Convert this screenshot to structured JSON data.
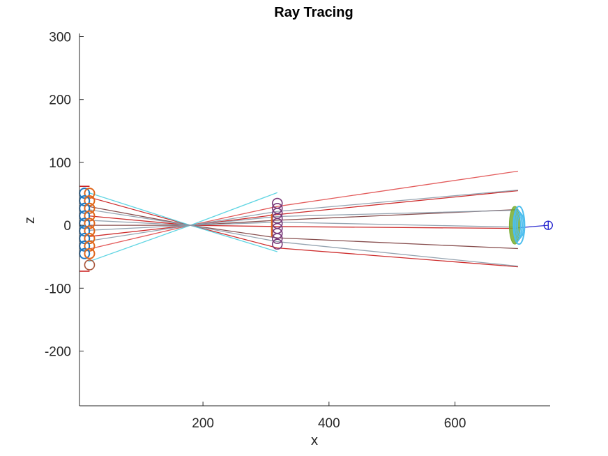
{
  "colors": {
    "background": "#ffffff",
    "axis": "#262626",
    "ray_red": "#c81414",
    "ray_red_light": "#e04a4a",
    "ray_dark": "#7a3b3b",
    "ray_cyan": "#4fd0e0",
    "ray_gray": "#8a9aa8",
    "blue": "#1f77c0",
    "orange": "#e0661a",
    "brown": "#a8553a",
    "purple": "#7a3a7a",
    "green": "#77ac30",
    "sky": "#4dbeee",
    "navy": "#1a1acc"
  },
  "chart_data": {
    "type": "line",
    "title": "Ray Tracing",
    "xlabel": "x",
    "ylabel": "z",
    "xlim": [
      4,
      751
    ],
    "ylim": [
      -287,
      305
    ],
    "xticks": [
      200,
      400,
      600
    ],
    "yticks": [
      300,
      200,
      100,
      0,
      -100,
      -200
    ],
    "grid": false,
    "focus_point": {
      "x": 180,
      "z": 0
    },
    "source": {
      "x_positions": [
        12,
        20
      ],
      "z_levels": [
        51,
        39,
        27,
        15,
        3,
        -9,
        -21,
        -33,
        -45
      ],
      "lower_marker": {
        "x": 20,
        "z": -63
      },
      "aperture_bars": {
        "x_start": 4,
        "x_end": 20,
        "z": [
          62,
          -73
        ]
      }
    },
    "middle_plane": {
      "x": 318,
      "z_levels": [
        35,
        27,
        19,
        11,
        3,
        -5,
        -13,
        -21,
        -30
      ]
    },
    "detector": {
      "x": 695,
      "z_min": -30,
      "z_max": 30,
      "eye": {
        "x": 748,
        "z": 0
      }
    },
    "series": [
      {
        "x": [
          18,
          180,
          318,
          700
        ],
        "z": [
          45,
          0,
          -36,
          -66
        ],
        "color": "ray_red"
      },
      {
        "x": [
          18,
          180,
          318,
          700
        ],
        "z": [
          30,
          0,
          -20,
          -37
        ],
        "color": "ray_dark"
      },
      {
        "x": [
          18,
          180,
          318,
          700
        ],
        "z": [
          15,
          0,
          -2,
          -5
        ],
        "color": "ray_red"
      },
      {
        "x": [
          18,
          180,
          318,
          700
        ],
        "z": [
          0,
          0,
          8,
          25
        ],
        "color": "ray_dark"
      },
      {
        "x": [
          18,
          180,
          318,
          700
        ],
        "z": [
          -18,
          0,
          17,
          55
        ],
        "color": "ray_red"
      },
      {
        "x": [
          18,
          180,
          318,
          700
        ],
        "z": [
          -38,
          0,
          30,
          86
        ],
        "color": "ray_red_light"
      },
      {
        "x": [
          18,
          180,
          318
        ],
        "z": [
          -58,
          0,
          52
        ],
        "color": "ray_cyan"
      },
      {
        "x": [
          18,
          180,
          318
        ],
        "z": [
          52,
          0,
          -42
        ],
        "color": "ray_cyan"
      },
      {
        "x": [
          18,
          180,
          318,
          700
        ],
        "z": [
          -25,
          0,
          22,
          56
        ],
        "color": "ray_gray"
      },
      {
        "x": [
          18,
          180,
          318,
          700
        ],
        "z": [
          25,
          0,
          -26,
          -65
        ],
        "color": "ray_gray"
      },
      {
        "x": [
          18,
          180,
          318,
          700
        ],
        "z": [
          8,
          0,
          5,
          -3
        ],
        "color": "ray_gray"
      },
      {
        "x": [
          18,
          180,
          318,
          700
        ],
        "z": [
          -8,
          0,
          14,
          24
        ],
        "color": "ray_gray"
      },
      {
        "x": [
          700,
          748
        ],
        "z": [
          -4,
          0
        ],
        "color": "navy"
      }
    ]
  }
}
